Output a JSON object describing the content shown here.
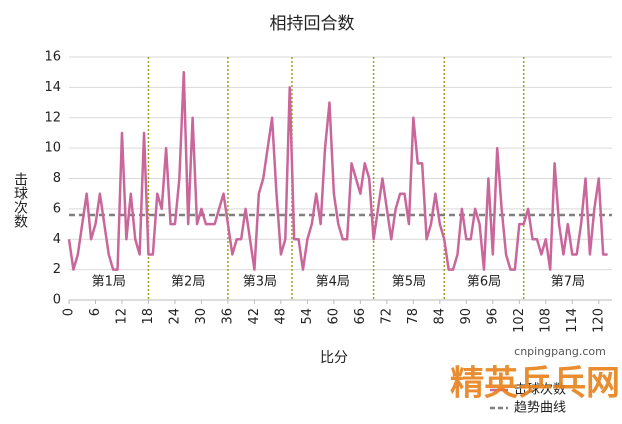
{
  "chart_data": {
    "type": "line",
    "title": "相持回合数",
    "y_label": "击球次数",
    "x_label": "比分",
    "x": [
      0,
      1,
      2,
      3,
      4,
      5,
      6,
      7,
      8,
      9,
      10,
      11,
      12,
      13,
      14,
      15,
      16,
      17,
      18,
      19,
      20,
      21,
      22,
      23,
      24,
      25,
      26,
      27,
      28,
      29,
      30,
      31,
      32,
      33,
      34,
      35,
      36,
      37,
      38,
      39,
      40,
      41,
      42,
      43,
      44,
      45,
      46,
      47,
      48,
      49,
      50,
      51,
      52,
      53,
      54,
      55,
      56,
      57,
      58,
      59,
      60,
      61,
      62,
      63,
      64,
      65,
      66,
      67,
      68,
      69,
      70,
      71,
      72,
      73,
      74,
      75,
      76,
      77,
      78,
      79,
      80,
      81,
      82,
      83,
      84,
      85,
      86,
      87,
      88,
      89,
      90,
      91,
      92,
      93,
      94,
      95,
      96,
      97,
      98,
      99,
      100,
      101,
      102,
      103,
      104,
      105,
      106,
      107,
      108,
      109,
      110,
      111,
      112,
      113,
      114,
      115,
      116,
      117,
      118,
      119,
      120,
      121,
      122
    ],
    "series": [
      {
        "name": "击球次数",
        "color": "#c9679b",
        "values": [
          4,
          2,
          3,
          5,
          7,
          4,
          5,
          7,
          5,
          3,
          2,
          2,
          11,
          4,
          7,
          4,
          3,
          11,
          3,
          3,
          7,
          6,
          10,
          5,
          5,
          8,
          15,
          5,
          12,
          5,
          6,
          5,
          5,
          5,
          6,
          7,
          5,
          3,
          4,
          4,
          6,
          4,
          2,
          7,
          8,
          10,
          12,
          7,
          3,
          4,
          14,
          4,
          4,
          2,
          4,
          5,
          7,
          5,
          10,
          13,
          7,
          5,
          4,
          4,
          9,
          8,
          7,
          9,
          8,
          4,
          6,
          8,
          6,
          4,
          6,
          7,
          7,
          5,
          12,
          9,
          9,
          4,
          5,
          7,
          5,
          4,
          2,
          2,
          3,
          6,
          4,
          4,
          6,
          5,
          2,
          8,
          3,
          10,
          6,
          3,
          2,
          2,
          5,
          5,
          6,
          4,
          4,
          3,
          4,
          2,
          9,
          5,
          3,
          5,
          3,
          3,
          5,
          8,
          3,
          6,
          8,
          3,
          3
        ]
      }
    ],
    "trend": {
      "name": "趋势曲线",
      "value": 5.6,
      "color": "#7f7f7f"
    },
    "dividers": [
      18,
      36,
      50.5,
      69,
      85,
      103
    ],
    "divider_color": "#a0a020",
    "games": [
      "第1局",
      "第2局",
      "第3局",
      "第4局",
      "第5局",
      "第6局",
      "第7局"
    ],
    "xlim": [
      0,
      123
    ],
    "xticks": [
      0,
      6,
      12,
      18,
      24,
      30,
      36,
      42,
      48,
      54,
      60,
      66,
      72,
      78,
      84,
      90,
      96,
      102,
      108,
      114,
      120
    ],
    "ylim": [
      0,
      16
    ],
    "yticks": [
      0,
      2,
      4,
      6,
      8,
      10,
      12,
      14,
      16
    ],
    "grid": true,
    "watermark": {
      "brand": "精英乒乓网",
      "url": "cnpingpang.com"
    }
  }
}
